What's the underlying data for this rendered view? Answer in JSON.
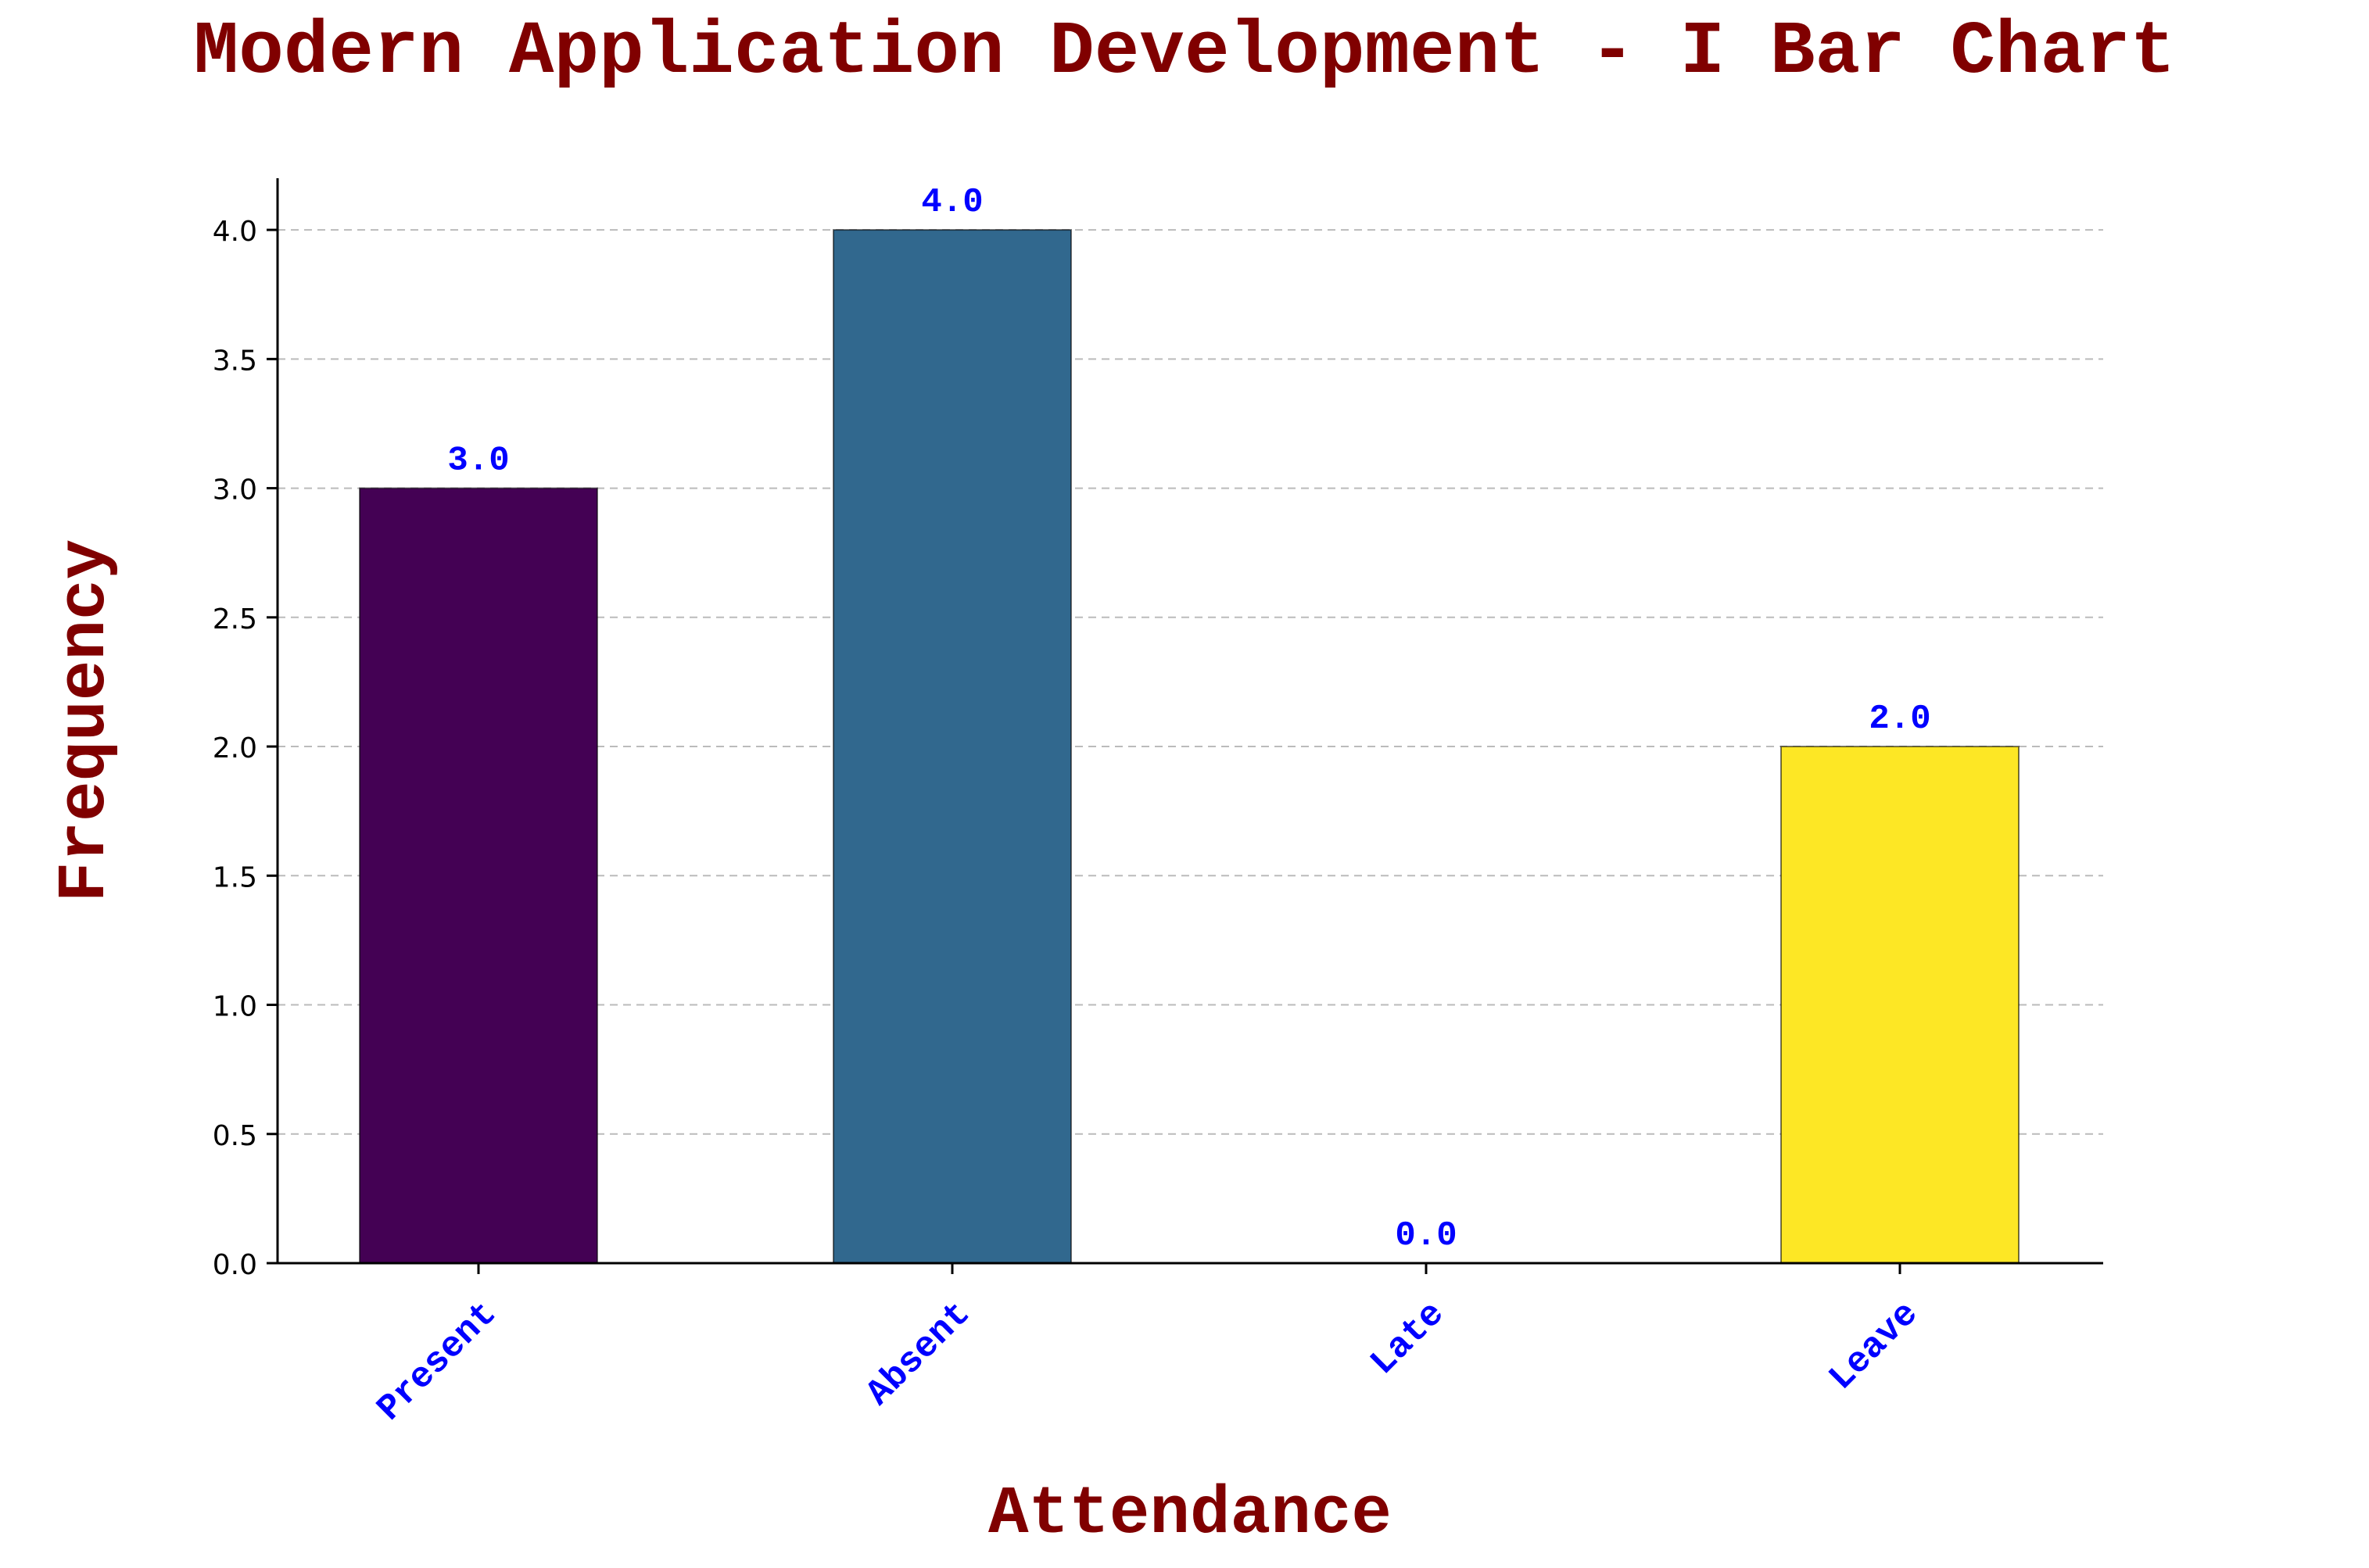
{
  "chart_data": {
    "type": "bar",
    "title": "Modern Application Development - I Bar Chart",
    "xlabel": "Attendance",
    "ylabel": "Frequency",
    "categories": [
      "Present",
      "Absent",
      "Late",
      "Leave"
    ],
    "values": [
      3.0,
      4.0,
      0.0,
      2.0
    ],
    "value_labels": [
      "3.0",
      "4.0",
      "0.0",
      "2.0"
    ],
    "bar_colors": [
      "#440154",
      "#31688e",
      "#35b779",
      "#fde725"
    ],
    "ylim": [
      0,
      4.2
    ],
    "yticks": [
      0.0,
      0.5,
      1.0,
      1.5,
      2.0,
      2.5,
      3.0,
      3.5,
      4.0
    ],
    "ytick_labels": [
      "0.0",
      "0.5",
      "1.0",
      "1.5",
      "2.0",
      "2.5",
      "3.0",
      "3.5",
      "4.0"
    ],
    "grid": {
      "axis": "y",
      "style": "dashed",
      "color": "#bbbbbb"
    },
    "title_color": "#800000",
    "label_color": "#800000",
    "annotation_color": "#0000ff",
    "xtick_color": "#0000ff",
    "xtick_rotation": 45
  }
}
